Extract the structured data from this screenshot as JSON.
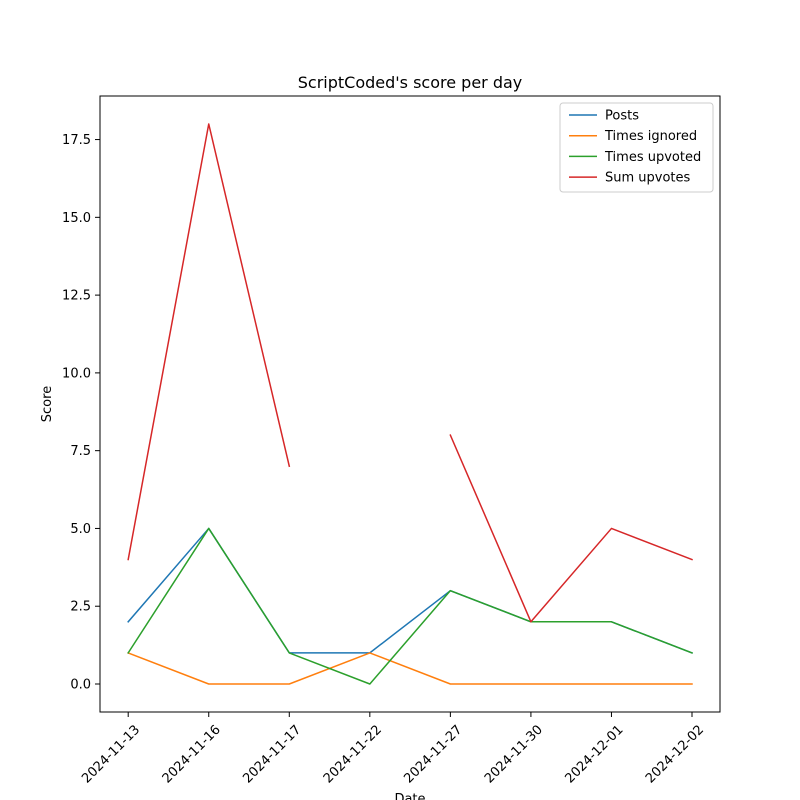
{
  "chart_data": {
    "type": "line",
    "title": "ScriptCoded's score per day",
    "xlabel": "Date",
    "ylabel": "Score",
    "categories": [
      "2024-11-13",
      "2024-11-16",
      "2024-11-17",
      "2024-11-22",
      "2024-11-27",
      "2024-11-30",
      "2024-12-01",
      "2024-12-02"
    ],
    "ylim": [
      -0.9,
      18.9
    ],
    "yticks": [
      "0.0",
      "2.5",
      "5.0",
      "7.5",
      "10.0",
      "12.5",
      "15.0",
      "17.5"
    ],
    "legend_position": "top-right",
    "grid": false,
    "series": [
      {
        "name": "Posts",
        "color": "#1f77b4",
        "values": [
          2,
          5,
          1,
          1,
          3,
          2,
          2,
          1
        ]
      },
      {
        "name": "Times ignored",
        "color": "#ff7f0e",
        "values": [
          1,
          0,
          0,
          1,
          0,
          0,
          0,
          0
        ]
      },
      {
        "name": "Times upvoted",
        "color": "#2ca02c",
        "values": [
          1,
          5,
          1,
          0,
          3,
          2,
          2,
          1
        ]
      },
      {
        "name": "Sum upvotes",
        "color": "#d62728",
        "values": [
          4,
          18,
          7,
          null,
          8,
          2,
          5,
          4
        ]
      }
    ]
  }
}
